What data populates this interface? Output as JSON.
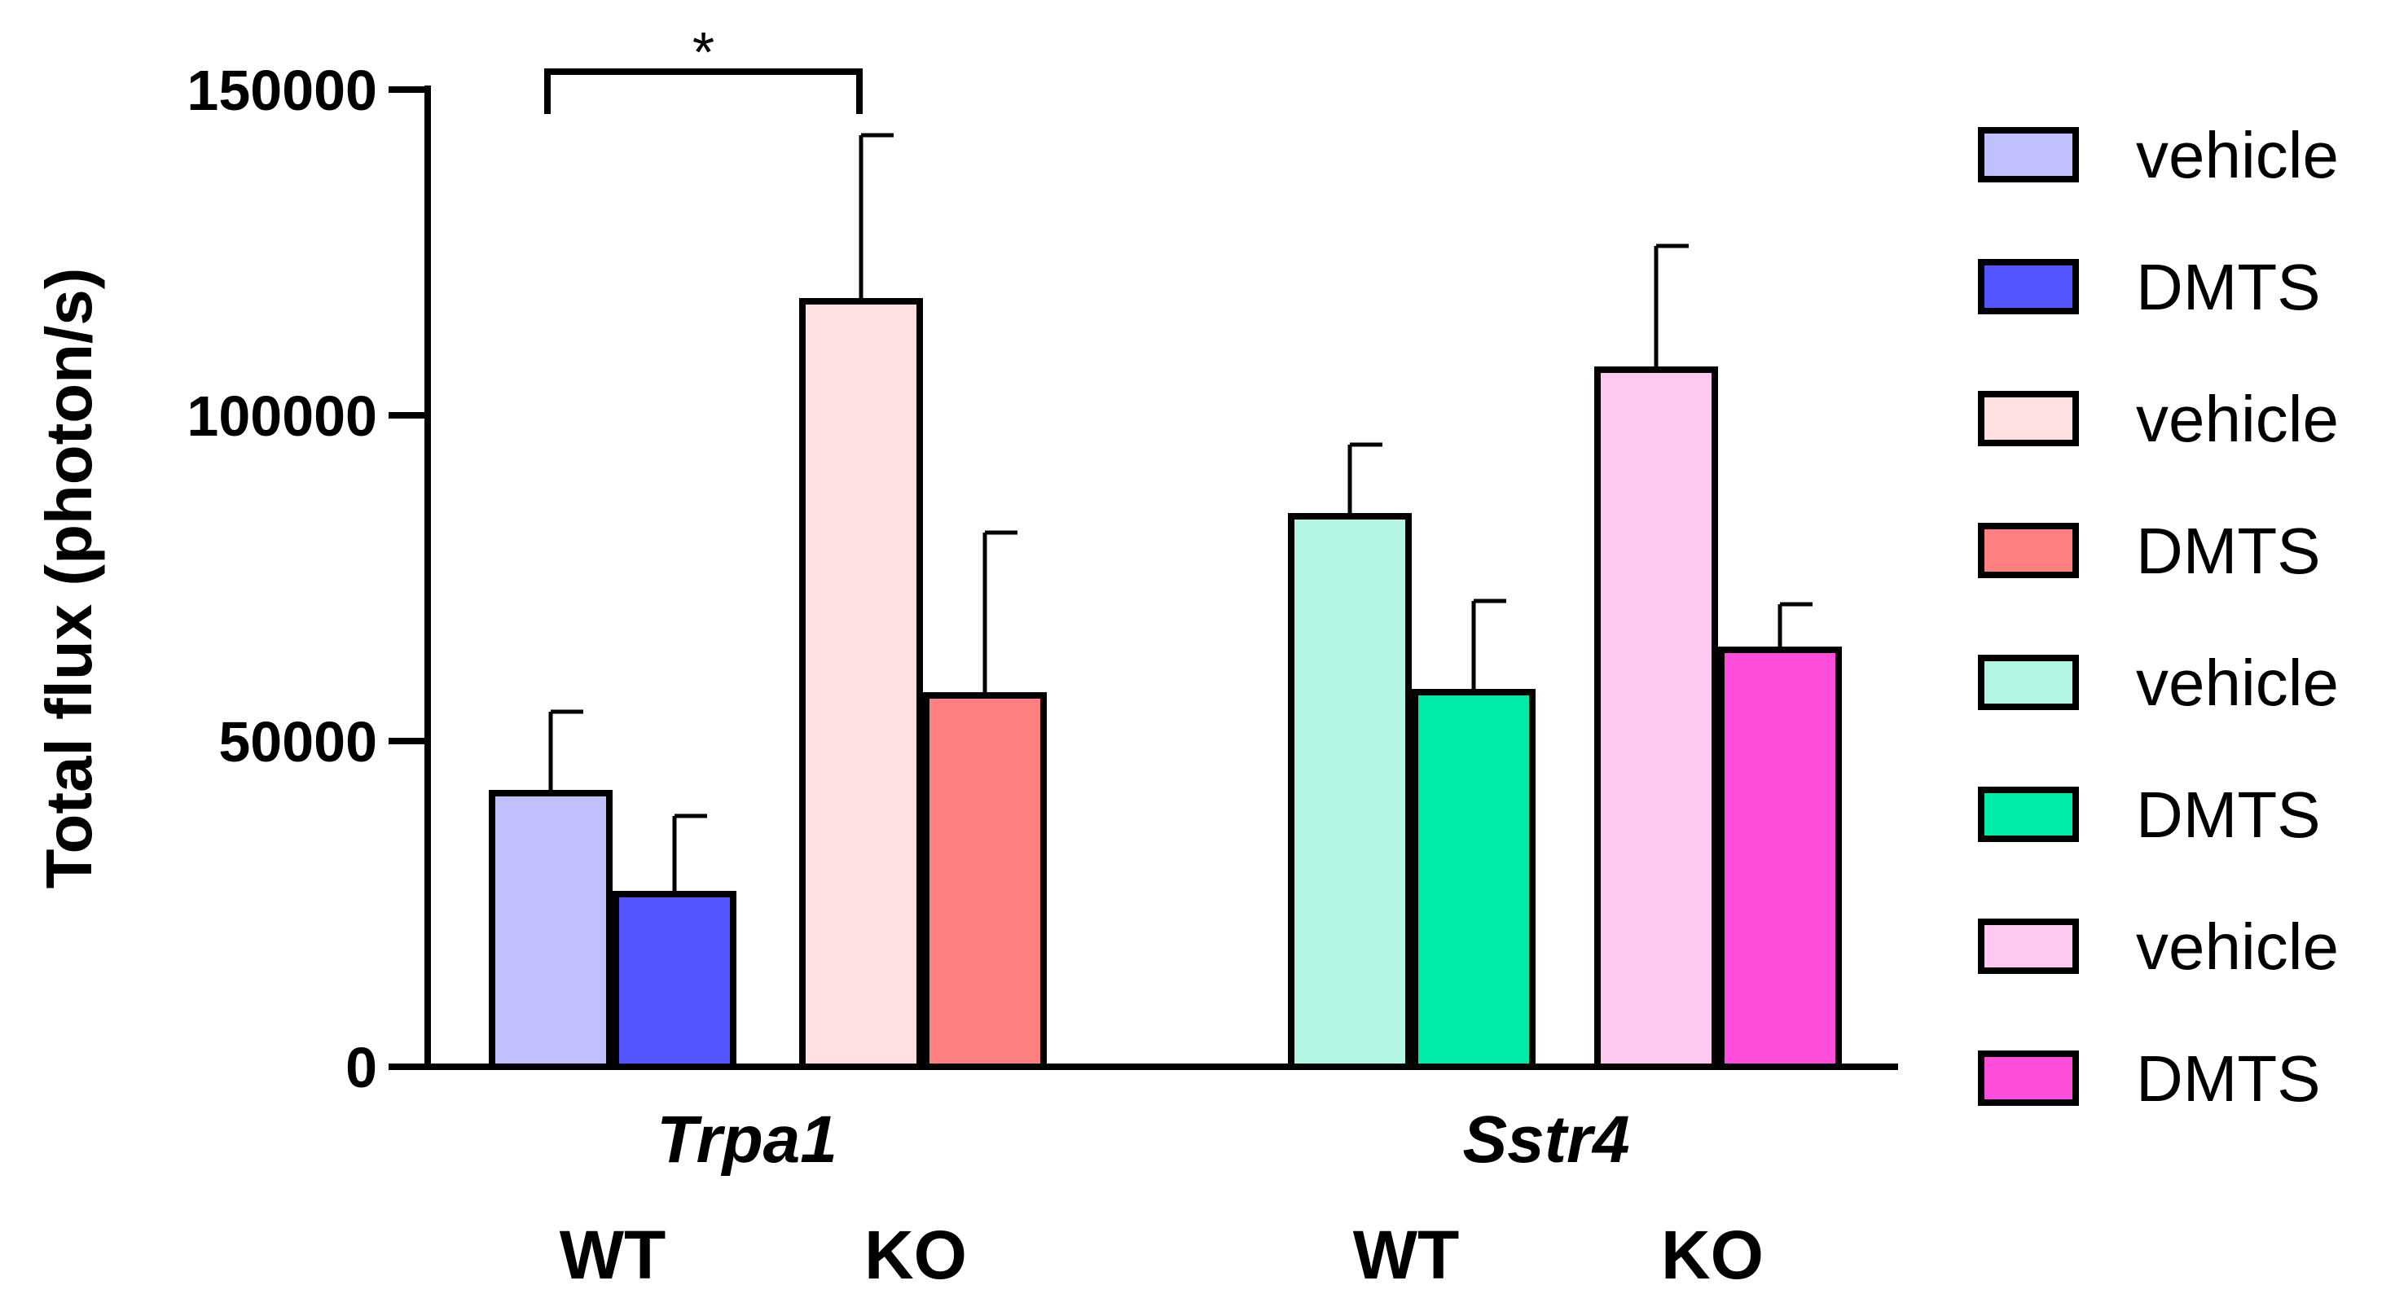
{
  "chart_data": {
    "type": "bar",
    "ylabel": "Total flux (photon/s)",
    "ylim": [
      0,
      150000
    ],
    "yticks": [
      0,
      50000,
      100000,
      150000
    ],
    "groups": [
      {
        "gene": "Trpa1",
        "subgroups": [
          {
            "genotype": "WT",
            "bars": [
              {
                "label": "vehicle",
                "value": 42000,
                "error": 12500,
                "color": "#c0c0ff"
              },
              {
                "label": "DMTS",
                "value": 26500,
                "error": 12000,
                "color": "#5555ff"
              }
            ]
          },
          {
            "genotype": "KO",
            "bars": [
              {
                "label": "vehicle",
                "value": 117500,
                "error": 25500,
                "color": "#ffe0e0"
              },
              {
                "label": "DMTS",
                "value": 57000,
                "error": 25000,
                "color": "#ff8080"
              }
            ]
          }
        ]
      },
      {
        "gene": "Sstr4",
        "subgroups": [
          {
            "genotype": "WT",
            "bars": [
              {
                "label": "vehicle",
                "value": 84500,
                "error": 11000,
                "color": "#b3f5e3"
              },
              {
                "label": "DMTS",
                "value": 57500,
                "error": 14000,
                "color": "#00eaa8"
              }
            ]
          },
          {
            "genotype": "KO",
            "bars": [
              {
                "label": "vehicle",
                "value": 107000,
                "error": 19000,
                "color": "#ffc8f0"
              },
              {
                "label": "DMTS",
                "value": 64000,
                "error": 7000,
                "color": "#ff4ddb"
              }
            ]
          }
        ]
      }
    ],
    "legend": {
      "placement": "right",
      "entries": [
        {
          "label": "vehicle",
          "color": "#c0c0ff"
        },
        {
          "label": "DMTS",
          "color": "#5555ff"
        },
        {
          "label": "vehicle",
          "color": "#ffe0e0"
        },
        {
          "label": "DMTS",
          "color": "#ff8080"
        },
        {
          "label": "vehicle",
          "color": "#b3f5e3"
        },
        {
          "label": "DMTS",
          "color": "#00eaa8"
        },
        {
          "label": "vehicle",
          "color": "#ffc8f0"
        },
        {
          "label": "DMTS",
          "color": "#ff4ddb"
        }
      ]
    },
    "annotations": [
      {
        "type": "significance",
        "text": "*",
        "between": [
          "Trpa1 WT vehicle",
          "Trpa1 KO vehicle"
        ]
      }
    ]
  }
}
